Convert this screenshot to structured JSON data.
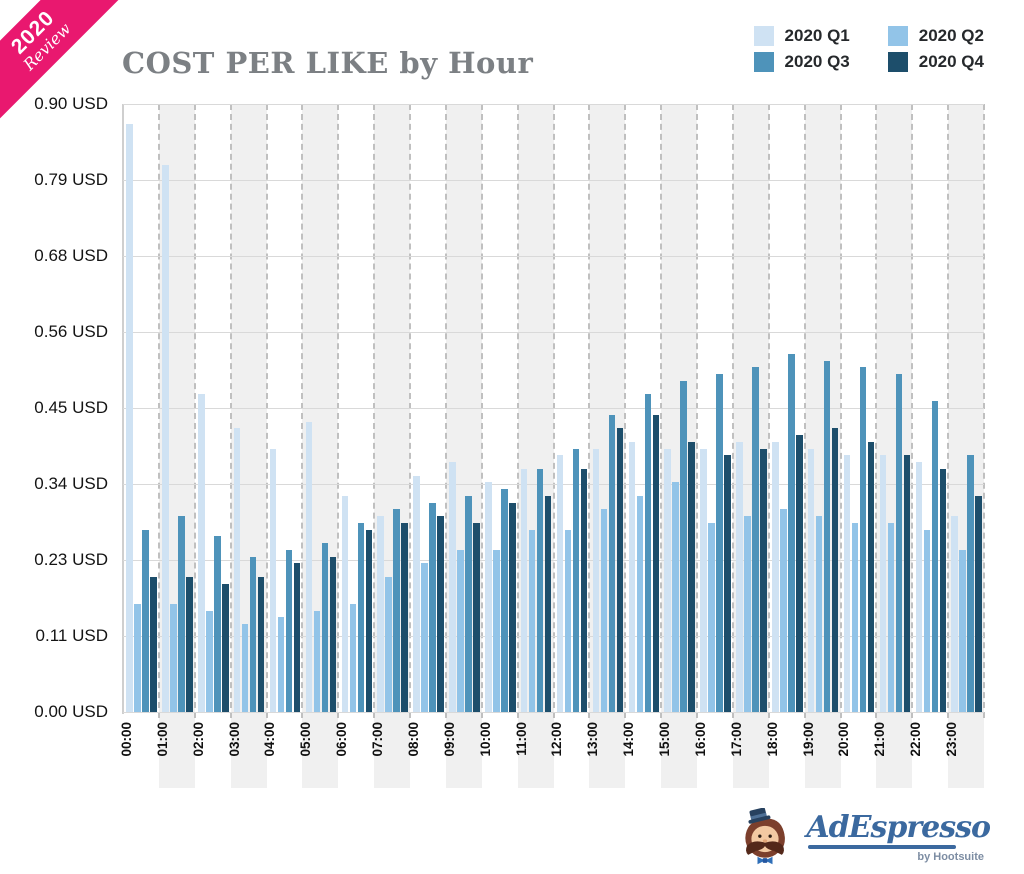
{
  "ribbon": {
    "line1": "2020",
    "line2": "Review",
    "color": "#e9186f"
  },
  "title": "COST PER LIKE by Hour",
  "legend": [
    {
      "label": "2020 Q1",
      "color": "#cfe2f3"
    },
    {
      "label": "2020 Q2",
      "color": "#92c4e8"
    },
    {
      "label": "2020 Q3",
      "color": "#4e93ba"
    },
    {
      "label": "2020 Q4",
      "color": "#1d4e6b"
    }
  ],
  "chart_data": {
    "type": "bar",
    "title": "COST PER LIKE by Hour",
    "unit": "USD",
    "categories": [
      "00:00",
      "01:00",
      "02:00",
      "03:00",
      "04:00",
      "05:00",
      "06:00",
      "07:00",
      "08:00",
      "09:00",
      "10:00",
      "11:00",
      "12:00",
      "13:00",
      "14:00",
      "15:00",
      "16:00",
      "17:00",
      "18:00",
      "19:00",
      "20:00",
      "21:00",
      "22:00",
      "23:00"
    ],
    "series": [
      {
        "name": "2020 Q1",
        "color": "#cfe2f3",
        "values": [
          0.87,
          0.81,
          0.47,
          0.42,
          0.39,
          0.43,
          0.32,
          0.29,
          0.35,
          0.37,
          0.34,
          0.36,
          0.38,
          0.39,
          0.4,
          0.39,
          0.39,
          0.4,
          0.4,
          0.39,
          0.38,
          0.38,
          0.37,
          0.29
        ]
      },
      {
        "name": "2020 Q2",
        "color": "#92c4e8",
        "values": [
          0.16,
          0.16,
          0.15,
          0.13,
          0.14,
          0.15,
          0.16,
          0.2,
          0.22,
          0.24,
          0.24,
          0.27,
          0.27,
          0.3,
          0.32,
          0.34,
          0.28,
          0.29,
          0.3,
          0.29,
          0.28,
          0.28,
          0.27,
          0.24
        ]
      },
      {
        "name": "2020 Q3",
        "color": "#4e93ba",
        "values": [
          0.27,
          0.29,
          0.26,
          0.23,
          0.24,
          0.25,
          0.28,
          0.3,
          0.31,
          0.32,
          0.33,
          0.36,
          0.39,
          0.44,
          0.47,
          0.49,
          0.5,
          0.51,
          0.53,
          0.52,
          0.51,
          0.5,
          0.46,
          0.38
        ]
      },
      {
        "name": "2020 Q4",
        "color": "#1d4e6b",
        "values": [
          0.2,
          0.2,
          0.19,
          0.2,
          0.22,
          0.23,
          0.27,
          0.28,
          0.29,
          0.28,
          0.31,
          0.32,
          0.36,
          0.42,
          0.44,
          0.4,
          0.38,
          0.39,
          0.41,
          0.42,
          0.4,
          0.38,
          0.36,
          0.32
        ]
      }
    ],
    "ylim": [
      0,
      0.9
    ],
    "y_ticks": [
      {
        "value": 0.0,
        "label": "0.00 USD"
      },
      {
        "value": 0.1125,
        "label": "0.11 USD"
      },
      {
        "value": 0.225,
        "label": "0.23 USD"
      },
      {
        "value": 0.3375,
        "label": "0.34 USD"
      },
      {
        "value": 0.45,
        "label": "0.45 USD"
      },
      {
        "value": 0.5625,
        "label": "0.56 USD"
      },
      {
        "value": 0.675,
        "label": "0.68 USD"
      },
      {
        "value": 0.7875,
        "label": "0.79 USD"
      },
      {
        "value": 0.9,
        "label": "0.90 USD"
      }
    ],
    "grid": true,
    "band_shading": "alternating odd hours #f0f0f0 with dashed borders",
    "legend_position": "top-right"
  },
  "logo": {
    "brand": "AdEspresso",
    "sub": "by Hootsuite"
  }
}
